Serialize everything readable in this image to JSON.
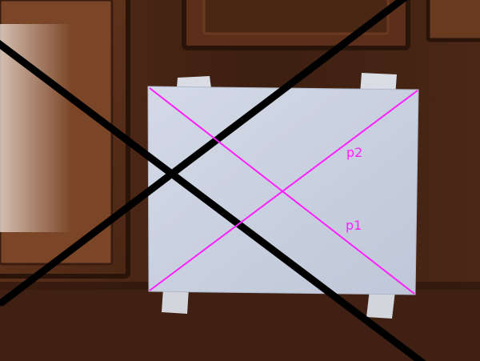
{
  "photo": {
    "labels": {
      "p1": "p1",
      "p2": "p2"
    },
    "colors": {
      "wood_dark": "#2e170d",
      "wood_mid": "#4a2615",
      "wood_light": "#6b3a21",
      "paper": "#c9d0df",
      "tape": "#d8dbe0",
      "black_line": "#000000",
      "magenta_line": "#ff1fff"
    }
  }
}
